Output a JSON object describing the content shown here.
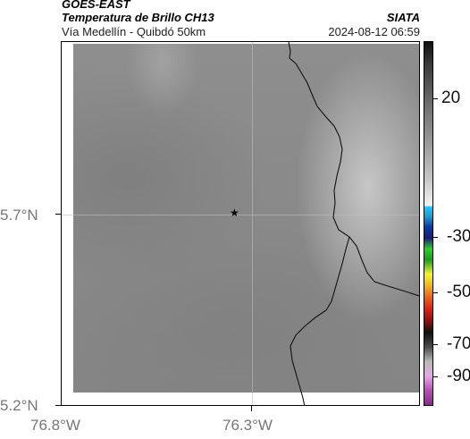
{
  "header": {
    "satellite": "GOES-EAST",
    "title": "Temperatura de Brillo CH13",
    "organization": "SIATA",
    "subtitle": "Vía Medellín - Quibdó 50km",
    "datetime": "2024-08-12 06:59"
  },
  "axes": {
    "lat_labels": [
      "5.7°N",
      "5.2°N"
    ],
    "lon_labels": [
      "76.8°W",
      "76.3°W"
    ]
  },
  "colorbar": {
    "labels": [
      "20",
      "-30",
      "-50",
      "-70",
      "-90"
    ]
  },
  "marker": {
    "symbol": "★"
  }
}
